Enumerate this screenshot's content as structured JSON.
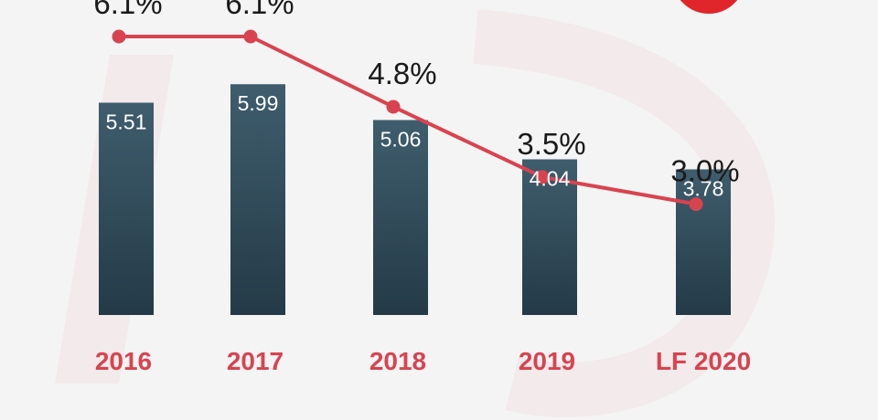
{
  "chart_data": {
    "type": "bar",
    "categories": [
      "2016",
      "2017",
      "2018",
      "2019",
      "LF 2020"
    ],
    "series": [
      {
        "type": "bar",
        "values": [
          5.51,
          5.99,
          5.06,
          4.04,
          3.78
        ]
      },
      {
        "type": "line",
        "values": [
          6.1,
          6.1,
          4.8,
          3.5,
          3.0
        ],
        "labels": [
          "6.1%",
          "6.1%",
          "4.8%",
          "3.5%",
          "3.0%"
        ]
      }
    ],
    "title": "",
    "xlabel": "",
    "ylabel": "",
    "grid": false,
    "legend": "none"
  },
  "colors": {
    "bar": "#2c4654",
    "line": "#d9434f",
    "category_text": "#d9434f",
    "background": "#f4f4f4"
  }
}
